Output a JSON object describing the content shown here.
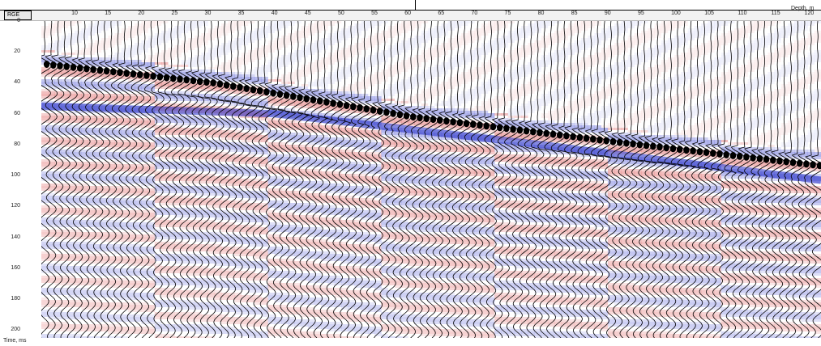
{
  "header": {
    "rge_label": "RGE",
    "depth_label": "Depth, m",
    "depth_ticks": [
      "10",
      "15",
      "20",
      "25",
      "30",
      "35",
      "40",
      "45",
      "50",
      "55",
      "60",
      "65",
      "70",
      "75",
      "80",
      "85",
      "90",
      "95",
      "100",
      "105",
      "110",
      "115",
      "120"
    ]
  },
  "left_axis": {
    "time_label": "Time, ms",
    "time_ticks": [
      "0",
      "20",
      "40",
      "60",
      "80",
      "100",
      "120",
      "140",
      "160",
      "180",
      "200"
    ]
  },
  "chart_data": {
    "type": "heatmap",
    "title": "",
    "xlabel": "Depth, m",
    "ylabel": "Time, ms",
    "xlim": [
      5,
      122
    ],
    "ylim": [
      0,
      205
    ],
    "trace_depth_start": 5,
    "trace_depth_step": 1,
    "trace_count": 117,
    "first_break": [
      {
        "depth": 5,
        "time": 28
      },
      {
        "depth": 30,
        "time": 40
      },
      {
        "depth": 60,
        "time": 62
      },
      {
        "depth": 90,
        "time": 78
      },
      {
        "depth": 122,
        "time": 94
      }
    ],
    "secondary_reflector": [
      {
        "depth": 5,
        "time": 55
      },
      {
        "depth": 40,
        "time": 60
      },
      {
        "depth": 80,
        "time": 80
      },
      {
        "depth": 122,
        "time": 103
      }
    ],
    "colors": {
      "positive": "#d21e1e",
      "negative": "#1e28c8",
      "trace": "#000000",
      "fill_peak": "#000000"
    }
  }
}
